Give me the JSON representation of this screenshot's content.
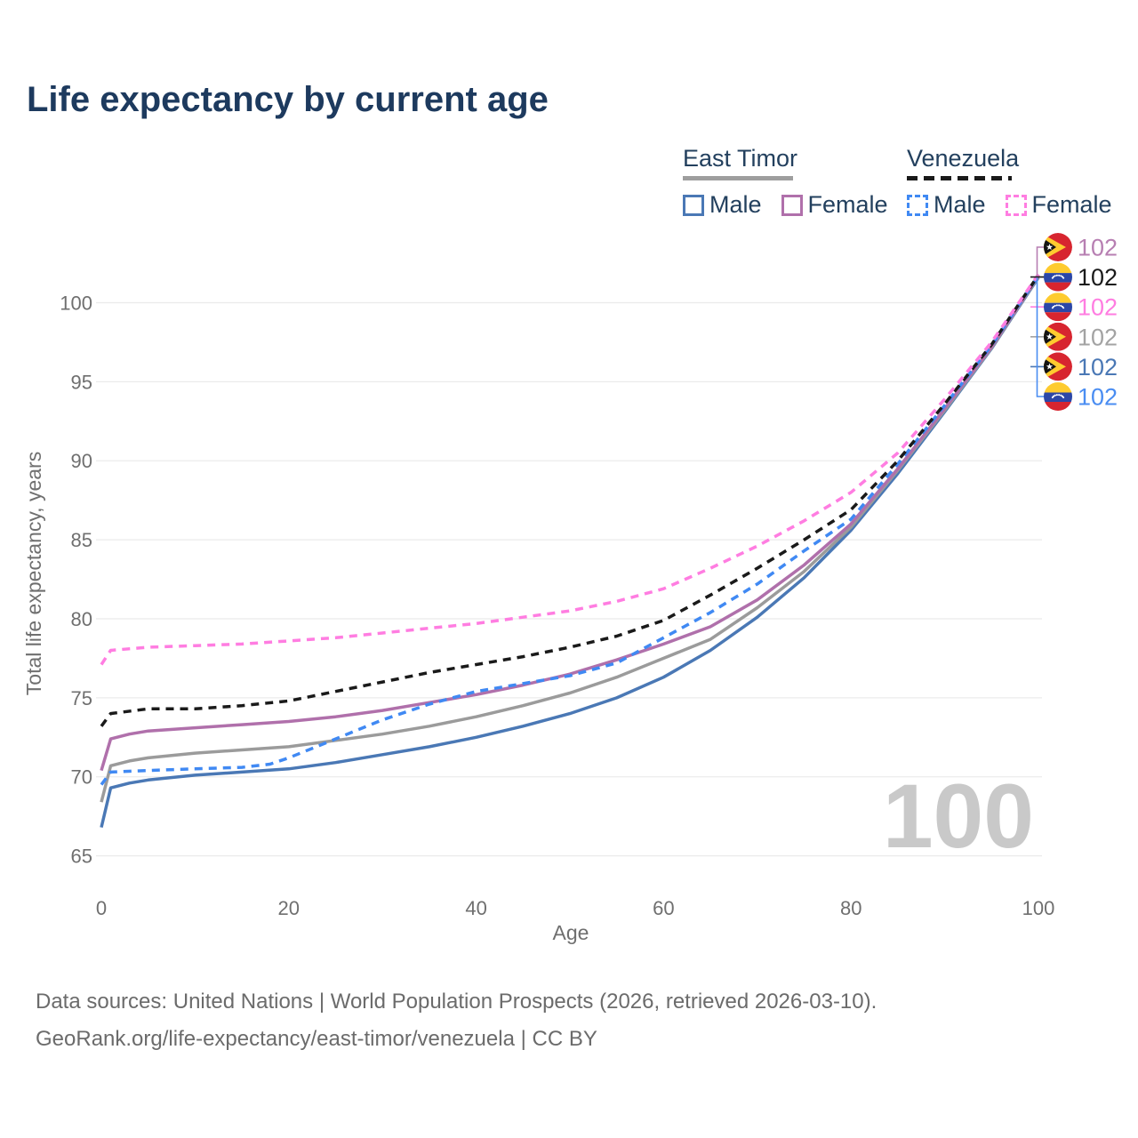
{
  "title": "Life expectancy by current age",
  "age_counter": "100",
  "colors": {
    "title": "#1d3a5e",
    "legend_text": "#23405e",
    "axis_text": "#6f6f6f",
    "grid": "#ebebeb",
    "counter": "#c9c9c9",
    "et_male": "#4a78b5",
    "et_female": "#b070ab",
    "et_both": "#9b9b9b",
    "ve_male": "#4089f3",
    "ve_female": "#ff7de1",
    "ve_both": "#1a1a1a"
  },
  "legend": {
    "groups": [
      {
        "name": "East Timor",
        "items": [
          {
            "label": "Male"
          },
          {
            "label": "Female"
          }
        ]
      },
      {
        "name": "Venezuela",
        "items": [
          {
            "label": "Male"
          },
          {
            "label": "Female"
          }
        ]
      }
    ]
  },
  "chart_data": {
    "type": "line",
    "title": "Life expectancy by current age",
    "xlabel": "Age",
    "ylabel": "Total life expectancy, years",
    "xlim": [
      0,
      100
    ],
    "ylim": [
      65,
      102
    ],
    "xticks": [
      0,
      20,
      40,
      60,
      80,
      100
    ],
    "yticks": [
      65,
      70,
      75,
      80,
      85,
      90,
      95,
      100
    ],
    "grid": "horizontal",
    "legend_position": "top-right",
    "series": [
      {
        "id": "east-timor-male",
        "name": "East Timor Male",
        "style": "solid",
        "color": "#4a78b5",
        "points": [
          [
            0,
            66.8
          ],
          [
            1,
            69.3
          ],
          [
            3,
            69.6
          ],
          [
            5,
            69.8
          ],
          [
            10,
            70.1
          ],
          [
            15,
            70.3
          ],
          [
            20,
            70.5
          ],
          [
            25,
            70.9
          ],
          [
            30,
            71.4
          ],
          [
            35,
            71.9
          ],
          [
            40,
            72.5
          ],
          [
            45,
            73.2
          ],
          [
            50,
            74.0
          ],
          [
            55,
            75.0
          ],
          [
            60,
            76.3
          ],
          [
            65,
            78.0
          ],
          [
            70,
            80.1
          ],
          [
            75,
            82.6
          ],
          [
            80,
            85.6
          ],
          [
            85,
            89.2
          ],
          [
            90,
            93.1
          ],
          [
            95,
            97.1
          ],
          [
            100,
            101.6
          ]
        ]
      },
      {
        "id": "east-timor-both",
        "name": "East Timor Both sexes",
        "style": "solid",
        "color": "#9b9b9b",
        "points": [
          [
            0,
            68.4
          ],
          [
            1,
            70.7
          ],
          [
            3,
            71.0
          ],
          [
            5,
            71.2
          ],
          [
            10,
            71.5
          ],
          [
            15,
            71.7
          ],
          [
            20,
            71.9
          ],
          [
            25,
            72.3
          ],
          [
            30,
            72.7
          ],
          [
            35,
            73.2
          ],
          [
            40,
            73.8
          ],
          [
            45,
            74.5
          ],
          [
            50,
            75.3
          ],
          [
            55,
            76.3
          ],
          [
            60,
            77.5
          ],
          [
            65,
            78.7
          ],
          [
            70,
            80.7
          ],
          [
            75,
            83.0
          ],
          [
            80,
            85.8
          ],
          [
            85,
            89.4
          ],
          [
            90,
            93.2
          ],
          [
            95,
            97.15
          ],
          [
            100,
            101.65
          ]
        ]
      },
      {
        "id": "east-timor-female",
        "name": "East Timor Female",
        "style": "solid",
        "color": "#b070ab",
        "points": [
          [
            0,
            70.4
          ],
          [
            1,
            72.4
          ],
          [
            3,
            72.7
          ],
          [
            5,
            72.9
          ],
          [
            10,
            73.1
          ],
          [
            15,
            73.3
          ],
          [
            20,
            73.5
          ],
          [
            25,
            73.8
          ],
          [
            30,
            74.2
          ],
          [
            35,
            74.7
          ],
          [
            40,
            75.2
          ],
          [
            45,
            75.8
          ],
          [
            50,
            76.5
          ],
          [
            55,
            77.4
          ],
          [
            60,
            78.4
          ],
          [
            65,
            79.5
          ],
          [
            70,
            81.2
          ],
          [
            75,
            83.4
          ],
          [
            80,
            86.0
          ],
          [
            85,
            89.5
          ],
          [
            90,
            93.3
          ],
          [
            95,
            97.2
          ],
          [
            100,
            101.7
          ]
        ]
      },
      {
        "id": "venezuela-male",
        "name": "Venezuela Male",
        "style": "dashed",
        "color": "#4089f3",
        "points": [
          [
            0,
            69.5
          ],
          [
            1,
            70.3
          ],
          [
            5,
            70.4
          ],
          [
            10,
            70.5
          ],
          [
            15,
            70.6
          ],
          [
            18,
            70.8
          ],
          [
            20,
            71.2
          ],
          [
            25,
            72.4
          ],
          [
            30,
            73.6
          ],
          [
            35,
            74.6
          ],
          [
            40,
            75.4
          ],
          [
            45,
            75.9
          ],
          [
            50,
            76.4
          ],
          [
            55,
            77.2
          ],
          [
            60,
            78.8
          ],
          [
            65,
            80.4
          ],
          [
            70,
            82.2
          ],
          [
            75,
            84.3
          ],
          [
            80,
            86.3
          ],
          [
            85,
            89.8
          ],
          [
            90,
            93.5
          ],
          [
            95,
            97.3
          ],
          [
            100,
            101.7
          ]
        ]
      },
      {
        "id": "venezuela-both",
        "name": "Venezuela Both sexes",
        "style": "dashed",
        "color": "#1a1a1a",
        "points": [
          [
            0,
            73.2
          ],
          [
            1,
            74.0
          ],
          [
            5,
            74.3
          ],
          [
            10,
            74.3
          ],
          [
            15,
            74.5
          ],
          [
            20,
            74.8
          ],
          [
            25,
            75.4
          ],
          [
            30,
            76.0
          ],
          [
            35,
            76.6
          ],
          [
            40,
            77.1
          ],
          [
            45,
            77.6
          ],
          [
            50,
            78.2
          ],
          [
            55,
            78.9
          ],
          [
            60,
            79.9
          ],
          [
            65,
            81.5
          ],
          [
            70,
            83.2
          ],
          [
            75,
            85.0
          ],
          [
            80,
            86.9
          ],
          [
            85,
            90.0
          ],
          [
            90,
            93.6
          ],
          [
            95,
            97.35
          ],
          [
            100,
            101.75
          ]
        ]
      },
      {
        "id": "venezuela-female",
        "name": "Venezuela Female",
        "style": "dashed",
        "color": "#ff7de1",
        "points": [
          [
            0,
            77.1
          ],
          [
            1,
            78.0
          ],
          [
            5,
            78.2
          ],
          [
            10,
            78.3
          ],
          [
            15,
            78.4
          ],
          [
            20,
            78.6
          ],
          [
            25,
            78.8
          ],
          [
            30,
            79.1
          ],
          [
            35,
            79.4
          ],
          [
            40,
            79.7
          ],
          [
            45,
            80.1
          ],
          [
            50,
            80.5
          ],
          [
            55,
            81.1
          ],
          [
            60,
            81.9
          ],
          [
            65,
            83.2
          ],
          [
            70,
            84.6
          ],
          [
            75,
            86.2
          ],
          [
            80,
            88.0
          ],
          [
            85,
            90.5
          ],
          [
            90,
            93.9
          ],
          [
            95,
            97.5
          ],
          [
            100,
            101.8
          ]
        ]
      }
    ],
    "end_labels": [
      {
        "flag": "east-timor",
        "value": "102",
        "color": "#b77fb2",
        "series": "East Timor Female"
      },
      {
        "flag": "venezuela",
        "value": "102",
        "color": "#1a1a1a",
        "series": "Venezuela Both sexes"
      },
      {
        "flag": "venezuela",
        "value": "102",
        "color": "#ff7de1",
        "series": "Venezuela Female"
      },
      {
        "flag": "east-timor",
        "value": "102",
        "color": "#a3a3a3",
        "series": "East Timor Both sexes"
      },
      {
        "flag": "east-timor",
        "value": "102",
        "color": "#4a78b5",
        "series": "East Timor Male"
      },
      {
        "flag": "venezuela",
        "value": "102",
        "color": "#4a8df2",
        "series": "Venezuela Male"
      }
    ]
  },
  "footer": {
    "line1": "Data sources: United Nations | World Population Prospects (2026, retrieved 2026-03-10).",
    "line2": "GeoRank.org/life-expectancy/east-timor/venezuela | CC BY"
  }
}
